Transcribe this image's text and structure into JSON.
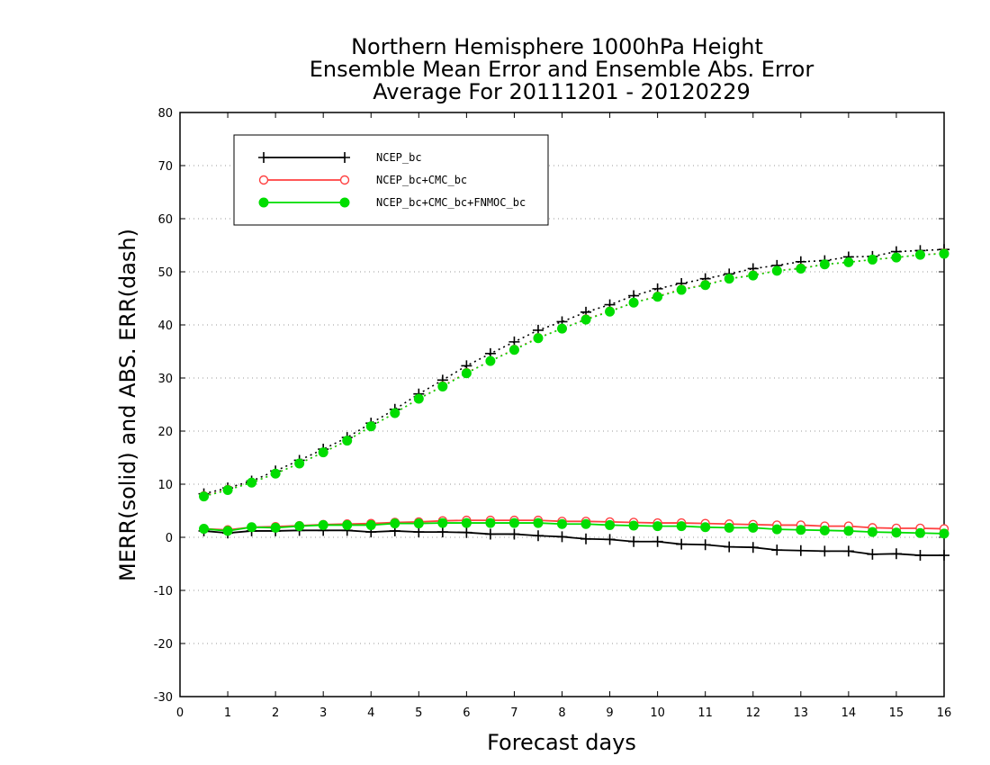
{
  "chart_data": {
    "type": "line",
    "title_lines": [
      "Northern Hemisphere 1000hPa Height",
      "Ensemble Mean Error and Ensemble Abs. Error",
      "Average For 20111201 - 20120229"
    ],
    "xlabel": "Forecast days",
    "ylabel": "MERR(solid) and ABS. ERR(dash)",
    "xlim": [
      0,
      16
    ],
    "ylim": [
      -30,
      80
    ],
    "x_ticks": [
      "0",
      "1",
      "2",
      "3",
      "4",
      "5",
      "6",
      "7",
      "8",
      "9",
      "10",
      "11",
      "12",
      "13",
      "14",
      "15",
      "16"
    ],
    "y_ticks": [
      "-30",
      "-20",
      "-10",
      "0",
      "10",
      "20",
      "30",
      "40",
      "50",
      "60",
      "70",
      "80"
    ],
    "grid": "horizontal dotted",
    "legend_position": "top-left",
    "x": [
      0.5,
      1,
      1.5,
      2,
      2.5,
      3,
      3.5,
      4,
      4.5,
      5,
      5.5,
      6,
      6.5,
      7,
      7.5,
      8,
      8.5,
      9,
      9.5,
      10,
      10.5,
      11,
      11.5,
      12,
      12.5,
      13,
      13.5,
      14,
      14.5,
      15,
      15.5,
      16
    ],
    "series": [
      {
        "name": "NCEP_bc",
        "color": "#000000",
        "marker": "plus",
        "merr": [
          1.2,
          0.8,
          1.2,
          1.2,
          1.3,
          1.3,
          1.3,
          1.0,
          1.2,
          1.0,
          1.0,
          0.9,
          0.6,
          0.6,
          0.3,
          0.1,
          -0.3,
          -0.4,
          -0.8,
          -0.8,
          -1.3,
          -1.4,
          -1.8,
          -1.9,
          -2.4,
          -2.5,
          -2.6,
          -2.6,
          -3.2,
          -3.1,
          -3.4,
          -3.4
        ],
        "abs_err": [
          8.2,
          9.3,
          10.6,
          12.5,
          14.5,
          16.6,
          18.8,
          21.5,
          24.1,
          27.0,
          29.6,
          32.3,
          34.6,
          36.8,
          39.0,
          40.6,
          42.4,
          43.8,
          45.5,
          46.8,
          47.8,
          48.7,
          49.6,
          50.6,
          51.2,
          51.9,
          52.1,
          52.8,
          52.9,
          53.8,
          54.0,
          54.2
        ]
      },
      {
        "name": "NCEP_bc+CMC_bc",
        "color": "#ff4040",
        "marker": "open-circle",
        "merr": [
          1.6,
          1.4,
          1.9,
          2.0,
          2.2,
          2.4,
          2.5,
          2.6,
          2.8,
          2.9,
          3.1,
          3.2,
          3.2,
          3.2,
          3.2,
          3.0,
          3.0,
          2.9,
          2.8,
          2.7,
          2.7,
          2.6,
          2.5,
          2.4,
          2.3,
          2.3,
          2.1,
          2.1,
          1.8,
          1.7,
          1.7,
          1.6
        ],
        "abs_err": [
          7.8,
          9.0,
          10.3,
          12.0,
          13.9,
          16.0,
          18.2,
          20.9,
          23.4,
          26.1,
          28.5,
          31.0,
          33.2,
          35.4,
          37.6,
          39.3,
          41.1,
          42.6,
          44.2,
          45.4,
          46.7,
          47.6,
          48.7,
          49.4,
          50.2,
          50.7,
          51.4,
          51.8,
          52.3,
          52.7,
          53.2,
          53.5
        ]
      },
      {
        "name": "NCEP_bc+CMC_bc+FNMOC_bc",
        "color": "#00dd00",
        "marker": "filled-circle",
        "merr": [
          1.6,
          1.2,
          1.9,
          1.8,
          2.1,
          2.3,
          2.3,
          2.3,
          2.6,
          2.6,
          2.7,
          2.7,
          2.7,
          2.7,
          2.7,
          2.5,
          2.5,
          2.3,
          2.2,
          2.1,
          2.1,
          1.9,
          1.8,
          1.8,
          1.5,
          1.4,
          1.3,
          1.2,
          1.0,
          0.9,
          0.8,
          0.7
        ],
        "abs_err": [
          7.7,
          8.9,
          10.3,
          12.0,
          13.9,
          16.0,
          18.2,
          20.9,
          23.4,
          26.1,
          28.4,
          30.9,
          33.2,
          35.3,
          37.5,
          39.3,
          41.0,
          42.5,
          44.2,
          45.3,
          46.6,
          47.5,
          48.7,
          49.3,
          50.2,
          50.6,
          51.4,
          51.8,
          52.3,
          52.7,
          53.2,
          53.4
        ]
      }
    ]
  }
}
